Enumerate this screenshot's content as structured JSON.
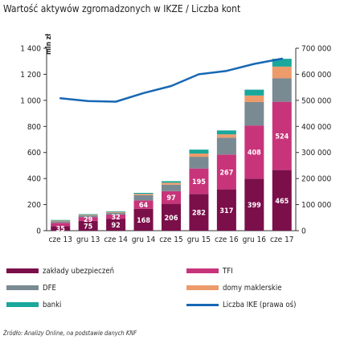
{
  "title": "Wartość aktywów zgromadzonych w IKZE / Liczba kont",
  "source": "Źródło: Analizy Online, na podstawie danych KNF",
  "chart_data": {
    "type": "bar",
    "stacked": true,
    "categories": [
      "cze 13",
      "gru 13",
      "cze 14",
      "gru 14",
      "cze 15",
      "gru 15",
      "cze 16",
      "gru 16",
      "cze 17"
    ],
    "ylabel": "mln zł",
    "ylim": [
      0,
      1400
    ],
    "yticks": [
      "0",
      "200",
      "400",
      "600",
      "800",
      "1 000",
      "1 200",
      "1 400"
    ],
    "yticks_values": [
      0,
      200,
      400,
      600,
      800,
      1000,
      1200,
      1400
    ],
    "y2lim": [
      0,
      700000
    ],
    "y2ticks": [
      "0",
      "100 000",
      "200 000",
      "300 000",
      "400 000",
      "500 000",
      "600 000",
      "700 000"
    ],
    "y2ticks_values": [
      0,
      100000,
      200000,
      300000,
      400000,
      500000,
      600000,
      700000
    ],
    "grid": false,
    "legend_position": "bottom",
    "series": [
      {
        "name": "zakłady ubezpieczeń",
        "color": "#7b0f4a",
        "values": [
          35,
          75,
          92,
          168,
          206,
          282,
          317,
          399,
          465
        ],
        "labels": [
          "35",
          "75",
          "92",
          "168",
          "206",
          "282",
          "317",
          "399",
          "465"
        ]
      },
      {
        "name": "TFI",
        "color": "#c8347a",
        "values": [
          25,
          29,
          32,
          64,
          97,
          195,
          267,
          408,
          524
        ],
        "labels": [
          "",
          "29",
          "32",
          "64",
          "97",
          "195",
          "267",
          "408",
          "524"
        ]
      },
      {
        "name": "DFE",
        "color": "#7a8a93",
        "values": [
          12,
          13,
          14,
          40,
          50,
          90,
          130,
          180,
          180
        ],
        "labels": [
          "",
          "",
          "",
          "",
          "",
          "",
          "",
          "",
          ""
        ]
      },
      {
        "name": "domy maklerskie",
        "color": "#ee9b6b",
        "values": [
          5,
          5,
          6,
          10,
          15,
          25,
          25,
          50,
          90
        ],
        "labels": [
          "",
          "",
          "",
          "",
          "",
          "",
          "",
          "",
          ""
        ]
      },
      {
        "name": "banki",
        "color": "#1aa79c",
        "values": [
          5,
          5,
          5,
          8,
          12,
          30,
          30,
          45,
          60
        ],
        "labels": [
          "",
          "",
          "",
          "",
          "",
          "",
          "",
          "",
          ""
        ]
      }
    ],
    "line": {
      "name": "Liczba IKE (prawa oś)",
      "color": "#1767b4",
      "axis": "right",
      "values": [
        508000,
        497000,
        495000,
        528000,
        555000,
        600000,
        613000,
        640000,
        660000
      ]
    }
  }
}
